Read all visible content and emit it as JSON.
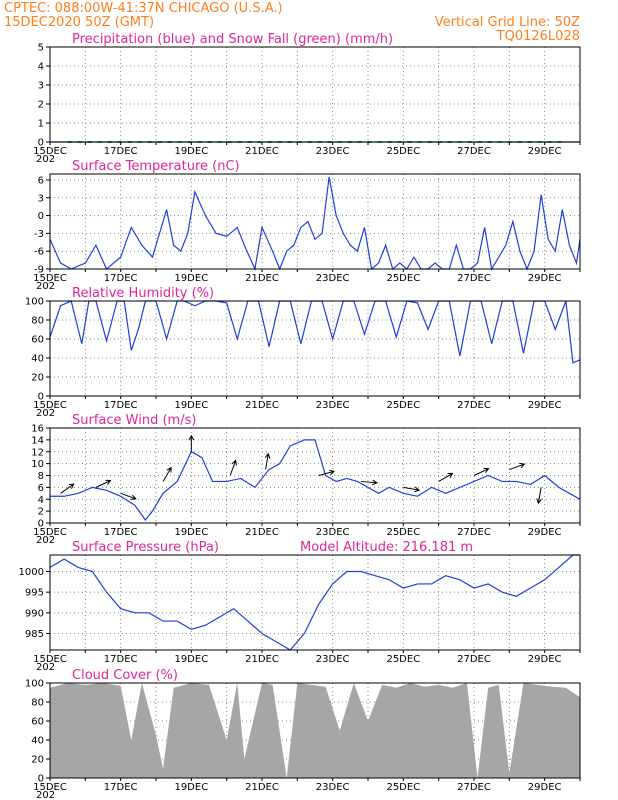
{
  "header": {
    "line1_left": "CPTEC:   088:00W-41:37N   CHICAGO (U.S.A.)",
    "line2_left": "15DEC2020 50Z (GMT)",
    "line1_right": "Vertical Grid Line: 50Z",
    "line2_right": "TQ0126L028"
  },
  "x_axis": {
    "ticks": [
      "15DEC",
      "17DEC",
      "19DEC",
      "21DEC",
      "23DEC",
      "25DEC",
      "27DEC",
      "29DEC"
    ],
    "corner_label": "202"
  },
  "colors": {
    "header": "#ff7f1e",
    "title": "#e0259a",
    "line": "#1f3fdb",
    "snow": "#22aa22",
    "cloud": "#a6a6a6",
    "wind_arrow": "#000000"
  },
  "chart_data": [
    {
      "type": "line",
      "title": "Precipitation (blue) and Snow Fall (green) (mm/h)",
      "ylim": [
        0,
        5
      ],
      "yticks": [
        0,
        1,
        2,
        3,
        4,
        5
      ],
      "series": [
        {
          "name": "Precipitation",
          "x": [
            0,
            15
          ],
          "values": [
            0,
            0
          ]
        },
        {
          "name": "Snow Fall",
          "x": [
            0.5,
            1.2,
            2.0,
            3.1,
            4.3,
            5.0,
            6.4,
            7.3,
            8.5,
            9.4,
            10.6,
            11.5,
            12.8,
            13.6,
            14.5
          ],
          "values": [
            0,
            0,
            0,
            0,
            0,
            0,
            0,
            0,
            0,
            0,
            0,
            0,
            0,
            0,
            0
          ]
        }
      ]
    },
    {
      "type": "line",
      "title": "Surface Temperature (nC)",
      "ylim": [
        -9,
        7
      ],
      "yticks": [
        -9,
        -6,
        -3,
        0,
        3,
        6
      ],
      "series": [
        {
          "name": "",
          "x": [
            0,
            0.3,
            0.6,
            1.0,
            1.3,
            1.6,
            1.8,
            2.0,
            2.3,
            2.6,
            2.9,
            3.1,
            3.3,
            3.5,
            3.7,
            3.9,
            4.1,
            4.4,
            4.7,
            5.0,
            5.3,
            5.5,
            5.8,
            6.0,
            6.3,
            6.5,
            6.7,
            6.9,
            7.1,
            7.3,
            7.5,
            7.7,
            7.9,
            8.1,
            8.3,
            8.5,
            8.7,
            8.9,
            9.1,
            9.3,
            9.5,
            9.7,
            9.9,
            10.1,
            10.3,
            10.5,
            10.7,
            10.9,
            11.1,
            11.3,
            11.5,
            11.7,
            11.9,
            12.1,
            12.3,
            12.5,
            12.7,
            12.9,
            13.1,
            13.3,
            13.5,
            13.7,
            13.9,
            14.1,
            14.3,
            14.5,
            14.7,
            14.9,
            15.0
          ],
          "values": [
            -4,
            -8,
            -9,
            -8,
            -5,
            -9,
            -8,
            -7,
            -2,
            -5,
            -7,
            -3,
            1,
            -5,
            -6,
            -3,
            4,
            0,
            -3,
            -3.5,
            -2,
            -5,
            -9,
            -2,
            -6,
            -9,
            -6,
            -5,
            -2,
            -1,
            -4,
            -3,
            6.5,
            0,
            -3,
            -5,
            -6,
            -2,
            -9,
            -8,
            -5,
            -9,
            -8,
            -9,
            -7,
            -9,
            -9,
            -8,
            -9,
            -9,
            -5,
            -9,
            -9,
            -8,
            -2,
            -9,
            -7,
            -5,
            -1,
            -6,
            -9,
            -6,
            3.5,
            -4,
            -6,
            1,
            -5,
            -8,
            -4
          ]
        }
      ]
    },
    {
      "type": "line",
      "title": "Relative Humidity (%)",
      "ylim": [
        0,
        100
      ],
      "yticks": [
        0,
        20,
        40,
        60,
        80,
        100
      ],
      "series": [
        {
          "name": "",
          "x": [
            0,
            0.3,
            0.6,
            0.9,
            1.1,
            1.3,
            1.6,
            1.9,
            2.1,
            2.3,
            2.5,
            2.7,
            3.0,
            3.3,
            3.6,
            3.8,
            4.1,
            4.4,
            4.7,
            5.0,
            5.3,
            5.6,
            5.9,
            6.2,
            6.5,
            6.8,
            7.1,
            7.4,
            7.7,
            8.0,
            8.3,
            8.6,
            8.9,
            9.2,
            9.5,
            9.8,
            10.1,
            10.4,
            10.7,
            11.0,
            11.3,
            11.6,
            11.9,
            12.2,
            12.5,
            12.8,
            13.1,
            13.4,
            13.7,
            14.0,
            14.3,
            14.6,
            14.8,
            15.0
          ],
          "values": [
            62,
            95,
            100,
            55,
            100,
            100,
            58,
            100,
            100,
            48,
            70,
            100,
            100,
            60,
            100,
            100,
            95,
            100,
            100,
            98,
            60,
            100,
            100,
            52,
            100,
            100,
            55,
            100,
            100,
            60,
            100,
            100,
            65,
            100,
            100,
            62,
            100,
            98,
            70,
            100,
            100,
            42,
            100,
            100,
            55,
            100,
            100,
            45,
            100,
            100,
            70,
            100,
            35,
            38
          ]
        }
      ]
    },
    {
      "type": "line",
      "title": "Surface Wind (m/s)",
      "ylim": [
        0,
        16
      ],
      "yticks": [
        0,
        2,
        4,
        6,
        8,
        10,
        12,
        14,
        16
      ],
      "series": [
        {
          "name": "",
          "x": [
            0,
            0.4,
            0.8,
            1.2,
            1.6,
            2.0,
            2.4,
            2.7,
            2.9,
            3.2,
            3.6,
            4.0,
            4.3,
            4.6,
            5.0,
            5.4,
            5.8,
            6.2,
            6.5,
            6.8,
            7.2,
            7.5,
            7.8,
            8.1,
            8.4,
            8.7,
            9.0,
            9.3,
            9.6,
            10.0,
            10.4,
            10.8,
            11.2,
            11.6,
            12.0,
            12.4,
            12.8,
            13.2,
            13.6,
            14.0,
            14.4,
            14.7,
            15.0
          ],
          "values": [
            4.5,
            4.5,
            5,
            6,
            5.5,
            4.5,
            3,
            0.5,
            2,
            5,
            7,
            12,
            11,
            7,
            7,
            7.5,
            6,
            9,
            10,
            13,
            14,
            14,
            8,
            7,
            7.5,
            7,
            6,
            5,
            6,
            5,
            4.5,
            6,
            5,
            6,
            7,
            8,
            7,
            7,
            6.5,
            8,
            6,
            5,
            4
          ]
        }
      ],
      "wind_barbs": [
        {
          "x": 0.3,
          "y": 5
        },
        {
          "x": 1.3,
          "y": 6
        },
        {
          "x": 2.0,
          "y": 5
        },
        {
          "x": 3.2,
          "y": 7
        },
        {
          "x": 4.0,
          "y": 12
        },
        {
          "x": 5.1,
          "y": 8
        },
        {
          "x": 6.1,
          "y": 9
        },
        {
          "x": 7.6,
          "y": 8
        },
        {
          "x": 8.8,
          "y": 7
        },
        {
          "x": 10.0,
          "y": 6
        },
        {
          "x": 11.0,
          "y": 7
        },
        {
          "x": 12.0,
          "y": 8
        },
        {
          "x": 13.0,
          "y": 9
        },
        {
          "x": 13.9,
          "y": 6
        }
      ]
    },
    {
      "type": "line",
      "title": "Surface Pressure (hPa)",
      "annotation": "Model Altitude: 216.181 m",
      "ylim": [
        981,
        1004
      ],
      "yticks": [
        985,
        990,
        995,
        1000
      ],
      "series": [
        {
          "name": "",
          "x": [
            0,
            0.4,
            0.8,
            1.2,
            1.6,
            2.0,
            2.4,
            2.8,
            3.2,
            3.6,
            4.0,
            4.4,
            4.8,
            5.2,
            5.6,
            6.0,
            6.4,
            6.8,
            7.2,
            7.6,
            8.0,
            8.4,
            8.8,
            9.2,
            9.6,
            10.0,
            10.4,
            10.8,
            11.2,
            11.6,
            12.0,
            12.4,
            12.8,
            13.2,
            13.6,
            14.0,
            14.4,
            14.8,
            15.0
          ],
          "values": [
            1001,
            1003,
            1001,
            1000,
            995,
            991,
            990,
            990,
            988,
            988,
            986,
            987,
            989,
            991,
            988,
            985,
            983,
            981,
            985,
            992,
            997,
            1000,
            1000,
            999,
            998,
            996,
            997,
            997,
            999,
            998,
            996,
            997,
            995,
            994,
            996,
            998,
            1001,
            1004,
            1004
          ]
        }
      ]
    },
    {
      "type": "area",
      "title": "Cloud Cover (%)",
      "ylim": [
        0,
        100
      ],
      "yticks": [
        0,
        20,
        40,
        60,
        80,
        100
      ],
      "series": [
        {
          "name": "",
          "x": [
            0,
            0.5,
            1.0,
            1.5,
            2.0,
            2.3,
            2.6,
            3.0,
            3.2,
            3.5,
            4.0,
            4.5,
            5.0,
            5.3,
            5.5,
            6.0,
            6.3,
            6.7,
            7.0,
            7.4,
            7.8,
            8.2,
            8.6,
            9.0,
            9.4,
            9.8,
            10.2,
            10.6,
            11.0,
            11.4,
            11.8,
            12.1,
            12.4,
            12.7,
            13.0,
            13.4,
            13.8,
            14.2,
            14.6,
            15.0
          ],
          "values": [
            95,
            100,
            98,
            100,
            97,
            40,
            100,
            45,
            10,
            95,
            100,
            98,
            40,
            100,
            20,
            100,
            98,
            0,
            100,
            98,
            96,
            50,
            100,
            60,
            98,
            95,
            100,
            96,
            98,
            95,
            100,
            0,
            95,
            98,
            5,
            100,
            98,
            96,
            95,
            85
          ]
        }
      ]
    }
  ]
}
